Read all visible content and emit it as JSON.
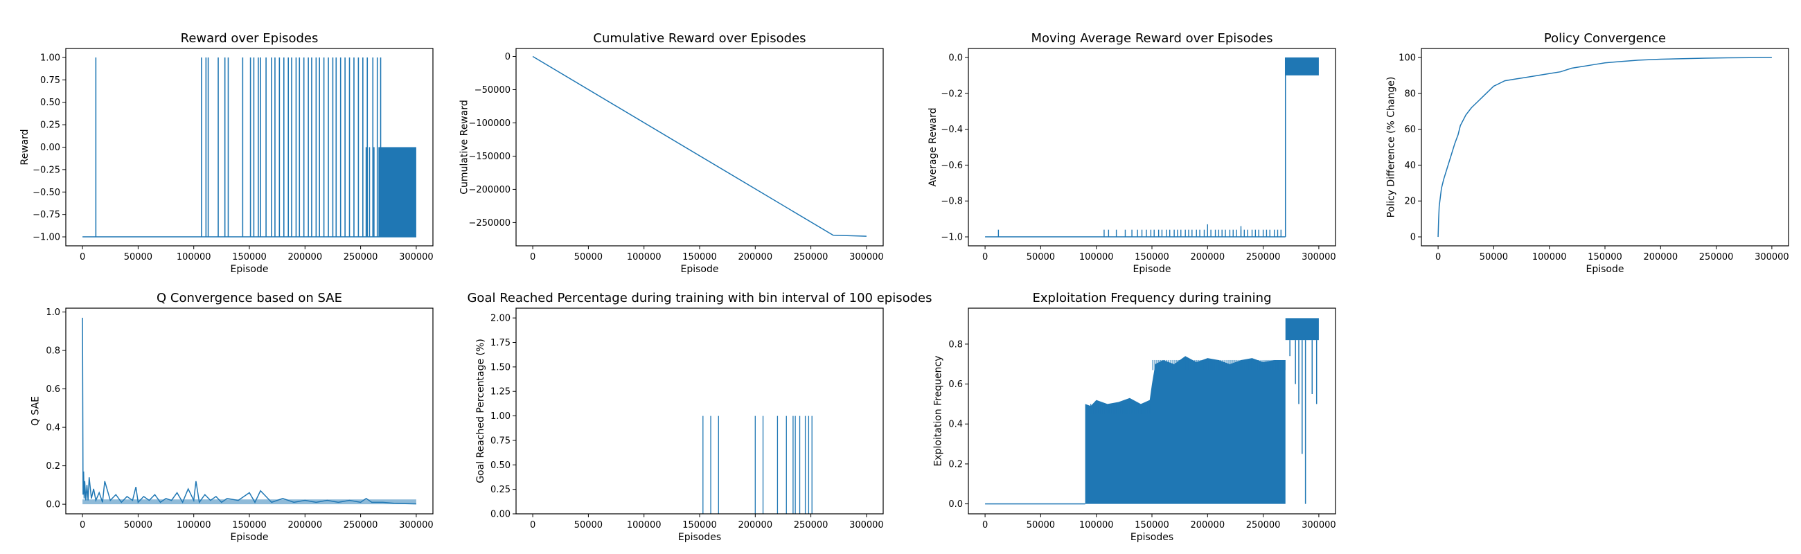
{
  "figure": {
    "suptitle": "",
    "series_color": "#1f77b4"
  },
  "chart_data": [
    {
      "id": "reward",
      "type": "line",
      "title": "Reward over Episodes",
      "xlabel": "Episode",
      "ylabel": "Reward",
      "xlim": [
        -15000,
        315000
      ],
      "ylim": [
        -1.1,
        1.1
      ],
      "xticks": [
        0,
        50000,
        100000,
        150000,
        200000,
        250000,
        300000
      ],
      "yticks": [
        -1.0,
        -0.75,
        -0.5,
        -0.25,
        0.0,
        0.25,
        0.5,
        0.75,
        1.0
      ],
      "ytick_labels": [
        "−1.00",
        "−0.75",
        "−0.50",
        "−0.25",
        "0.00",
        "0.25",
        "0.50",
        "0.75",
        "1.00"
      ],
      "baseline": -1.0,
      "spikes_to": 1.0,
      "spike_episodes": [
        12000,
        107000,
        111000,
        113000,
        122000,
        128000,
        131000,
        144000,
        151000,
        154000,
        158000,
        160000,
        165000,
        170000,
        173000,
        177000,
        181000,
        185000,
        188000,
        192000,
        195000,
        199000,
        203000,
        206000,
        210000,
        213000,
        217000,
        221000,
        225000,
        228000,
        232000,
        236000,
        240000,
        244000,
        248000,
        252000,
        256000,
        261000,
        265000,
        268000
      ],
      "zero_spike_episodes": [
        255000,
        258000,
        262000
      ],
      "dense_band": {
        "x": [
          266000,
          300000
        ],
        "y": [
          -1.0,
          0.0
        ]
      }
    },
    {
      "id": "cumulative",
      "type": "line",
      "title": "Cumulative Reward over Episodes",
      "xlabel": "Episode",
      "ylabel": "Cumulative Reward",
      "xlim": [
        -15000,
        315000
      ],
      "ylim": [
        -285000,
        12000
      ],
      "xticks": [
        0,
        50000,
        100000,
        150000,
        200000,
        250000,
        300000
      ],
      "yticks": [
        -250000,
        -200000,
        -150000,
        -100000,
        -50000,
        0
      ],
      "ytick_labels": [
        "−250000",
        "−200000",
        "−150000",
        "−100000",
        "−50000",
        "0"
      ],
      "x": [
        0,
        270000,
        300000
      ],
      "y": [
        0,
        -269000,
        -270500
      ]
    },
    {
      "id": "moving_avg",
      "type": "line",
      "title": "Moving Average Reward over Episodes",
      "xlabel": "Episode",
      "ylabel": "Average Reward",
      "xlim": [
        -15000,
        315000
      ],
      "ylim": [
        -1.05,
        0.05
      ],
      "xticks": [
        0,
        50000,
        100000,
        150000,
        200000,
        250000,
        300000
      ],
      "yticks": [
        -1.0,
        -0.8,
        -0.6,
        -0.4,
        -0.2,
        0.0
      ],
      "ytick_labels": [
        "−1.0",
        "−0.8",
        "−0.6",
        "−0.4",
        "−0.2",
        "0.0"
      ],
      "baseline": -1.0,
      "blip_height": -0.96,
      "blip_episodes": [
        12000,
        107000,
        111000,
        118000,
        126000,
        132000,
        137000,
        141000,
        145000,
        149000,
        152000,
        156000,
        159000,
        163000,
        166000,
        170000,
        173000,
        176000,
        180000,
        183000,
        186000,
        190000,
        193000,
        197000,
        200000,
        203000,
        207000,
        210000,
        213000,
        216000,
        220000,
        223000,
        226000,
        230000,
        233000,
        236000,
        240000,
        243000,
        246000,
        250000,
        253000,
        256000,
        260000,
        263000,
        266000
      ],
      "tall_blips": [
        {
          "x": 200000,
          "y": -0.93
        },
        {
          "x": 230000,
          "y": -0.94
        }
      ],
      "step_x": 270000,
      "upper_band": {
        "x": [
          270000,
          300000
        ],
        "y": [
          -0.2,
          0.0
        ]
      }
    },
    {
      "id": "policy",
      "type": "line",
      "title": "Policy Convergence",
      "xlabel": "Episode",
      "ylabel": "Policy Difference (% Change)",
      "xlim": [
        -15000,
        315000
      ],
      "ylim": [
        -5,
        105
      ],
      "xticks": [
        0,
        50000,
        100000,
        150000,
        200000,
        250000,
        300000
      ],
      "yticks": [
        0,
        20,
        40,
        60,
        80,
        100
      ],
      "ytick_labels": [
        "0",
        "20",
        "40",
        "60",
        "80",
        "100"
      ],
      "x": [
        0,
        500,
        1000,
        2000,
        3000,
        5000,
        7000,
        9000,
        12000,
        15000,
        18000,
        20000,
        25000,
        30000,
        35000,
        40000,
        45000,
        50000,
        60000,
        70000,
        80000,
        90000,
        100000,
        110000,
        120000,
        130000,
        140000,
        150000,
        160000,
        170000,
        180000,
        200000,
        220000,
        240000,
        260000,
        280000,
        300000
      ],
      "y": [
        0,
        10,
        17,
        22,
        27,
        32,
        36,
        40,
        46,
        52,
        57,
        62,
        68,
        72,
        75,
        78,
        81,
        84,
        87,
        88,
        89,
        90,
        91,
        92,
        94,
        95,
        96,
        97,
        97.5,
        98,
        98.5,
        99,
        99.3,
        99.6,
        99.8,
        99.9,
        100
      ]
    },
    {
      "id": "q_sae",
      "type": "line",
      "title": "Q Convergence based on SAE",
      "xlabel": "Episode",
      "ylabel": "Q SAE",
      "xlim": [
        -15000,
        315000
      ],
      "ylim": [
        -0.05,
        1.02
      ],
      "xticks": [
        0,
        50000,
        100000,
        150000,
        200000,
        250000,
        300000
      ],
      "yticks": [
        0.0,
        0.2,
        0.4,
        0.6,
        0.8,
        1.0
      ],
      "ytick_labels": [
        "0.0",
        "0.2",
        "0.4",
        "0.6",
        "0.8",
        "1.0"
      ],
      "x": [
        0,
        500,
        1000,
        1500,
        2000,
        3000,
        4000,
        5000,
        6000,
        8000,
        10000,
        12000,
        15000,
        18000,
        20000,
        25000,
        30000,
        35000,
        40000,
        45000,
        48000,
        50000,
        55000,
        60000,
        65000,
        70000,
        75000,
        80000,
        85000,
        90000,
        95000,
        100000,
        102000,
        105000,
        110000,
        115000,
        120000,
        125000,
        130000,
        140000,
        150000,
        155000,
        160000,
        170000,
        180000,
        190000,
        200000,
        210000,
        220000,
        230000,
        240000,
        250000,
        255000,
        260000,
        270000,
        280000,
        290000,
        300000
      ],
      "y": [
        0.97,
        0.05,
        0.17,
        0.03,
        0.12,
        0.02,
        0.1,
        0.02,
        0.14,
        0.03,
        0.08,
        0.02,
        0.06,
        0.01,
        0.12,
        0.02,
        0.05,
        0.01,
        0.04,
        0.02,
        0.09,
        0.01,
        0.04,
        0.02,
        0.05,
        0.01,
        0.03,
        0.02,
        0.06,
        0.01,
        0.08,
        0.02,
        0.12,
        0.01,
        0.05,
        0.02,
        0.04,
        0.01,
        0.03,
        0.02,
        0.06,
        0.01,
        0.07,
        0.01,
        0.03,
        0.01,
        0.02,
        0.01,
        0.02,
        0.01,
        0.02,
        0.01,
        0.03,
        0.01,
        0.01,
        0.005,
        0.003,
        0.002
      ]
    },
    {
      "id": "goal_pct",
      "type": "bar",
      "title": "Goal Reached Percentage during training with bin interval of 100 episodes",
      "xlabel": "Episodes",
      "ylabel": "Goal Reached Percentage (%)",
      "xlim": [
        -15000,
        315000
      ],
      "ylim": [
        0,
        2.1
      ],
      "xticks": [
        0,
        50000,
        100000,
        150000,
        200000,
        250000,
        300000
      ],
      "yticks": [
        0.0,
        0.25,
        0.5,
        0.75,
        1.0,
        1.25,
        1.5,
        1.75,
        2.0
      ],
      "ytick_labels": [
        "0.00",
        "0.25",
        "0.50",
        "0.75",
        "1.00",
        "1.25",
        "1.50",
        "1.75",
        "2.00"
      ],
      "x": [
        153000,
        160000,
        167000,
        200000,
        207000,
        220000,
        228000,
        234000,
        236000,
        240000,
        245000,
        248000,
        251000
      ],
      "values": [
        1,
        1,
        1,
        1,
        1,
        1,
        1,
        1,
        1,
        1,
        1,
        1,
        1
      ]
    },
    {
      "id": "exploit",
      "type": "area",
      "title": "Exploitation Frequency during training",
      "xlabel": "Episodes",
      "ylabel": "Exploitation Frequency",
      "xlim": [
        -15000,
        315000
      ],
      "ylim": [
        -0.05,
        0.98
      ],
      "xticks": [
        0,
        50000,
        100000,
        150000,
        200000,
        250000,
        300000
      ],
      "yticks": [
        0.0,
        0.2,
        0.4,
        0.6,
        0.8
      ],
      "ytick_labels": [
        "0.0",
        "0.2",
        "0.4",
        "0.6",
        "0.8"
      ],
      "flat_until": 90000,
      "band_top_x": [
        90000,
        95000,
        100000,
        110000,
        120000,
        130000,
        140000,
        148000,
        150000,
        153000,
        160000,
        170000,
        180000,
        190000,
        200000,
        210000,
        220000,
        230000,
        240000,
        250000,
        260000,
        270000
      ],
      "band_top_y": [
        0.5,
        0.49,
        0.52,
        0.5,
        0.51,
        0.53,
        0.5,
        0.52,
        0.6,
        0.7,
        0.72,
        0.7,
        0.74,
        0.71,
        0.73,
        0.72,
        0.7,
        0.72,
        0.73,
        0.71,
        0.72,
        0.72
      ],
      "band_end": 270000,
      "high_band": {
        "x": [
          270000,
          300000
        ],
        "top": 0.93,
        "bottom": 0.82
      },
      "dips": [
        {
          "x": 274000,
          "y": 0.74
        },
        {
          "x": 279000,
          "y": 0.6
        },
        {
          "x": 282000,
          "y": 0.5
        },
        {
          "x": 285000,
          "y": 0.25
        },
        {
          "x": 288000,
          "y": 0.0
        },
        {
          "x": 294000,
          "y": 0.55
        },
        {
          "x": 298000,
          "y": 0.5
        }
      ]
    }
  ]
}
